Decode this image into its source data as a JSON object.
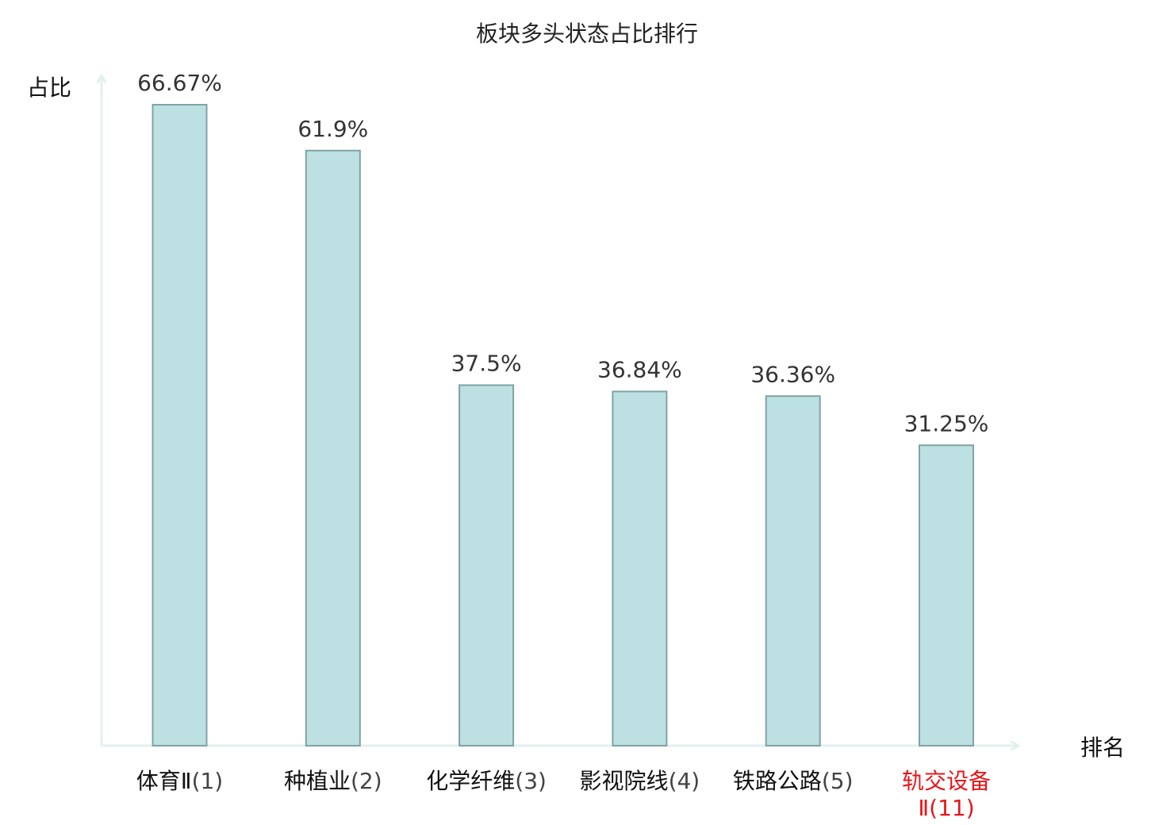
{
  "chart_data": {
    "type": "bar",
    "title": "板块多头状态占比排行",
    "ylabel": "占比",
    "xlabel": "排名",
    "ylim": [
      0,
      70
    ],
    "grid": false,
    "categories": [
      {
        "name": "体育Ⅱ",
        "rank": "(1)",
        "highlight": false
      },
      {
        "name": "种植业",
        "rank": "(2)",
        "highlight": false
      },
      {
        "name": "化学纤维",
        "rank": "(3)",
        "highlight": false
      },
      {
        "name": "影视院线",
        "rank": "(4)",
        "highlight": false
      },
      {
        "name": "铁路公路",
        "rank": "(5)",
        "highlight": false
      },
      {
        "name": "轨交设备",
        "rank": "Ⅱ(11)",
        "highlight": true
      }
    ],
    "values": [
      66.67,
      61.9,
      37.5,
      36.84,
      36.36,
      31.25
    ],
    "value_labels": [
      "66.67%",
      "61.9%",
      "37.5%",
      "36.84%",
      "36.36%",
      "31.25%"
    ],
    "colors": {
      "bar_fill": "#bde0e3",
      "bar_stroke": "#7fa3a6",
      "axis": "#e0f1ef",
      "label": "#111111",
      "highlight": "#e8161a",
      "rank_text": "#444444"
    }
  }
}
